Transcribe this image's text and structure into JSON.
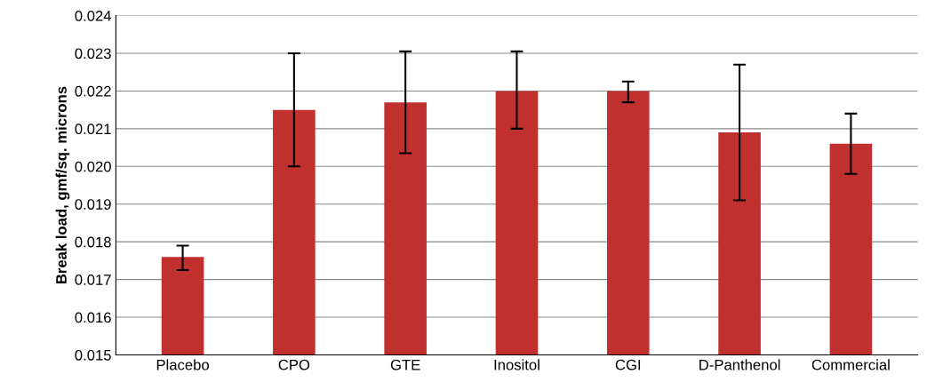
{
  "chart_data": {
    "type": "bar",
    "ylabel": "Break load, gmf/sq. microns",
    "categories": [
      "Placebo",
      "CPO",
      "GTE",
      "Inositol",
      "CGI",
      "D-Panthenol",
      "Commercial"
    ],
    "values": [
      0.0176,
      0.0215,
      0.0217,
      0.022,
      0.022,
      0.0209,
      0.0206
    ],
    "errors": [
      [
        0.01725,
        0.0179
      ],
      [
        0.02,
        0.023
      ],
      [
        0.02035,
        0.02305
      ],
      [
        0.021,
        0.02305
      ],
      [
        0.0217,
        0.02225
      ],
      [
        0.0191,
        0.0227
      ],
      [
        0.0198,
        0.0214
      ]
    ],
    "color": "#c0302e",
    "ylim": [
      0.015,
      0.024
    ],
    "yticks": [
      {
        "value": 0.015,
        "label": "0.015"
      },
      {
        "value": 0.016,
        "label": "0.016"
      },
      {
        "value": 0.017,
        "label": "0.017"
      },
      {
        "value": 0.018,
        "label": "0.018"
      },
      {
        "value": 0.019,
        "label": "0.019"
      },
      {
        "value": 0.02,
        "label": "0.020"
      },
      {
        "value": 0.021,
        "label": "0.021"
      },
      {
        "value": 0.022,
        "label": "0.022"
      },
      {
        "value": 0.023,
        "label": "0.023"
      },
      {
        "value": 0.024,
        "label": "0.024"
      }
    ],
    "grid": "y"
  }
}
